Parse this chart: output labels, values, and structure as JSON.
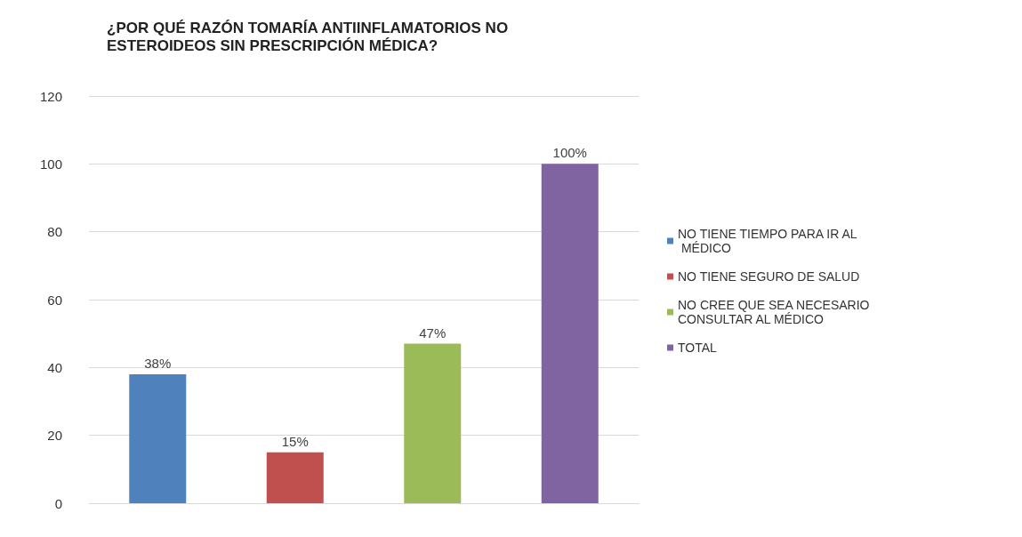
{
  "chart_data": {
    "type": "bar",
    "title": "¿POR QUÉ RAZÓN TOMARÍA ANTIINFLAMATORIOS NO ESTEROIDEOS SIN PRESCRIPCIÓN MÉDICA?",
    "categories": [
      null,
      null,
      null,
      null
    ],
    "series": [
      {
        "name": "NO TIENE TIEMPO PARA IR AL MÉDICO",
        "color": "#4f81bd",
        "values": [
          38,
          null,
          null,
          null
        ],
        "value_labels": [
          "38%",
          null,
          null,
          null
        ]
      },
      {
        "name": "NO TIENE SEGURO DE SALUD",
        "color": "#c0504d",
        "values": [
          null,
          15,
          null,
          null
        ],
        "value_labels": [
          null,
          "15%",
          null,
          null
        ]
      },
      {
        "name": "NO CREE QUE SEA NECESARIO CONSULTAR AL MÉDICO",
        "color": "#9bbb59",
        "values": [
          null,
          null,
          47,
          null
        ],
        "value_labels": [
          null,
          null,
          "47%",
          null
        ]
      },
      {
        "name": "TOTAL",
        "color": "#8064a2",
        "values": [
          null,
          null,
          null,
          100
        ],
        "value_labels": [
          null,
          null,
          null,
          "100%"
        ]
      }
    ],
    "ylim": [
      0,
      120
    ],
    "yticks": [
      0,
      20,
      40,
      60,
      80,
      100,
      120
    ],
    "grid": "y",
    "legend": "right"
  }
}
